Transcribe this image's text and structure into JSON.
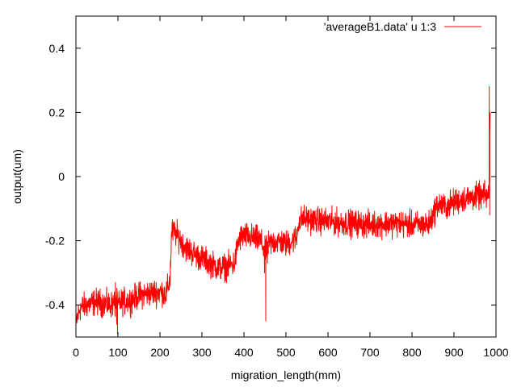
{
  "chart_data": {
    "type": "line",
    "title": "",
    "xlabel": "migration_length(mm)",
    "ylabel": "output(um)",
    "xlim": [
      0,
      1000
    ],
    "ylim": [
      -0.5,
      0.5
    ],
    "xticks": [
      0,
      100,
      200,
      300,
      400,
      500,
      600,
      700,
      800,
      900,
      1000
    ],
    "xtick_labels": [
      "0",
      "100",
      "200",
      "300",
      "400",
      "500",
      "600",
      "700",
      "800",
      "900",
      "1000"
    ],
    "yticks": [
      -0.4,
      -0.2,
      0,
      0.2,
      0.4
    ],
    "ytick_labels": [
      "-0.4",
      "-0.2",
      "0",
      "0.2",
      "0.4"
    ],
    "grid": false,
    "legend_position": "top-right",
    "series": [
      {
        "name": "'averageB1.data' u 1:3",
        "color": "#ff0000",
        "noise": 0.02,
        "x": [
          0,
          3,
          10,
          25,
          50,
          80,
          97,
          100,
          110,
          130,
          150,
          170,
          190,
          205,
          214,
          224,
          228,
          240,
          260,
          280,
          300,
          320,
          340,
          360,
          378,
          385,
          392,
          400,
          420,
          440,
          450,
          460,
          480,
          500,
          515,
          525,
          530,
          540,
          560,
          600,
          650,
          700,
          750,
          800,
          840,
          855,
          860,
          880,
          900,
          920,
          940,
          960,
          975,
          983,
          985,
          986
        ],
        "y": [
          -0.47,
          -0.44,
          -0.41,
          -0.4,
          -0.39,
          -0.4,
          -0.395,
          -0.4,
          -0.39,
          -0.385,
          -0.37,
          -0.365,
          -0.36,
          -0.36,
          -0.37,
          -0.32,
          -0.17,
          -0.18,
          -0.22,
          -0.24,
          -0.255,
          -0.27,
          -0.285,
          -0.28,
          -0.27,
          -0.21,
          -0.19,
          -0.185,
          -0.19,
          -0.2,
          -0.235,
          -0.21,
          -0.2,
          -0.21,
          -0.2,
          -0.19,
          -0.14,
          -0.13,
          -0.135,
          -0.14,
          -0.145,
          -0.15,
          -0.145,
          -0.15,
          -0.15,
          -0.105,
          -0.085,
          -0.095,
          -0.08,
          -0.07,
          -0.065,
          -0.06,
          -0.06,
          -0.06,
          0.1,
          0.2
        ],
        "spikes": [
          {
            "x": 94,
            "y": -0.33
          },
          {
            "x": 97,
            "y": -0.46
          },
          {
            "x": 99,
            "y": -0.49
          },
          {
            "x": 449,
            "y": -0.3
          },
          {
            "x": 452,
            "y": -0.45
          },
          {
            "x": 456,
            "y": -0.27
          },
          {
            "x": 984,
            "y": 0.28
          },
          {
            "x": 985,
            "y": -0.12
          }
        ]
      }
    ]
  }
}
